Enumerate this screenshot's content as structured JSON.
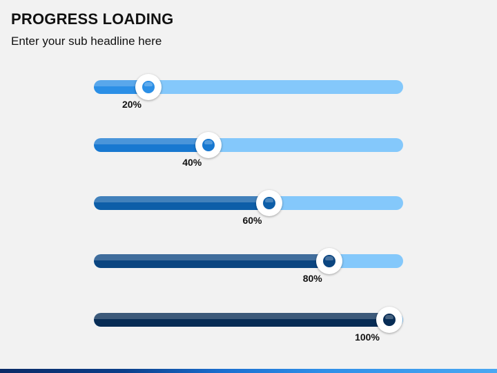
{
  "header": {
    "title": "PROGRESS LOADING",
    "subtitle": "Enter your sub headline here"
  },
  "colors": {
    "track": "#84c8fb",
    "footer_dark": "#0a2a66",
    "footer_light": "#4aa8f2"
  },
  "progress_bars": [
    {
      "label": "20%",
      "value": 20,
      "color": "#2b8fe6",
      "dot_color": "#2b8fe6"
    },
    {
      "label": "40%",
      "value": 40,
      "color": "#1878d0",
      "dot_color": "#1878d0"
    },
    {
      "label": "60%",
      "value": 60,
      "color": "#0d5ea8",
      "dot_color": "#0d5ea8"
    },
    {
      "label": "80%",
      "value": 80,
      "color": "#0b4580",
      "dot_color": "#0b4580"
    },
    {
      "label": "100%",
      "value": 100,
      "color": "#072c55",
      "dot_color": "#072c55"
    }
  ]
}
